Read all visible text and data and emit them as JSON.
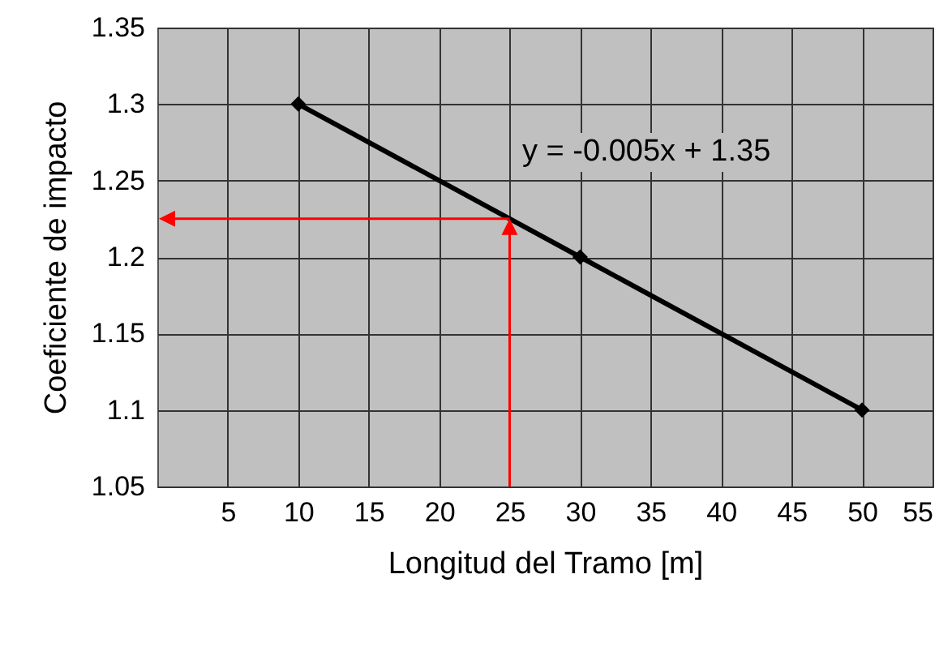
{
  "chart_data": {
    "type": "line",
    "xlabel": "Longitud del Tramo [m]",
    "ylabel": "Coeficiente de impacto",
    "xlim": [
      0,
      55
    ],
    "xticks": [
      5,
      10,
      15,
      20,
      25,
      30,
      35,
      40,
      45,
      50,
      55
    ],
    "ylim": [
      1.05,
      1.35
    ],
    "yticks": [
      1.05,
      1.1,
      1.15,
      1.2,
      1.25,
      1.3,
      1.35
    ],
    "grid": true,
    "series": [
      {
        "x": [
          10,
          30,
          50
        ],
        "values": [
          1.3,
          1.2,
          1.1
        ],
        "color": "#000000",
        "marker": "diamond"
      }
    ],
    "annotations": [
      "y = -0.005x + 1.35"
    ]
  }
}
